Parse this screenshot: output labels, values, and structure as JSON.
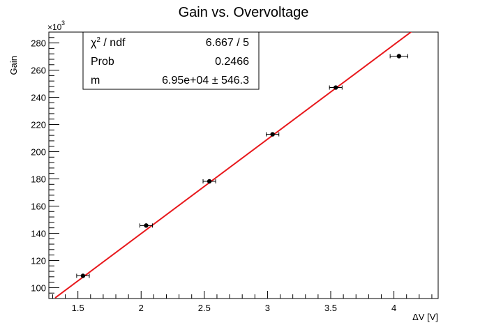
{
  "chart_data": {
    "type": "scatter",
    "title": "Gain vs. Overvoltage",
    "xlabel": "ΔV [V]",
    "ylabel": "Gain",
    "y_multiplier_label": "×10",
    "y_multiplier_exp": "3",
    "xlim": [
      1.27,
      4.35
    ],
    "ylim": [
      92,
      288
    ],
    "x_ticks": [
      1.5,
      2,
      2.5,
      3,
      3.5,
      4
    ],
    "x_tick_labels": [
      "1.5",
      "2",
      "2.5",
      "3",
      "3.5",
      "4"
    ],
    "y_ticks": [
      100,
      120,
      140,
      160,
      180,
      200,
      220,
      240,
      260,
      280
    ],
    "y_tick_labels": [
      "100",
      "120",
      "140",
      "160",
      "180",
      "200",
      "220",
      "240",
      "260",
      "280"
    ],
    "grid": false,
    "series": [
      {
        "x": [
          1.54,
          2.04,
          2.54,
          3.04,
          3.54,
          4.04
        ],
        "y": [
          108.7,
          145.7,
          178.2,
          212.8,
          247.2,
          270.3
        ],
        "x_err": [
          0.05,
          0.05,
          0.05,
          0.05,
          0.05,
          0.07
        ],
        "y_err": [
          0.5,
          0.5,
          0.5,
          0.5,
          0.5,
          0.5
        ],
        "color": "#000000"
      }
    ],
    "fit": {
      "type": "line",
      "color": "#e8181c",
      "x_start": 1.32,
      "x_end": 4.35,
      "y_start": 92.5,
      "y_end": 303
    },
    "stats_box": {
      "rows": [
        {
          "label_main": "χ",
          "label_sup": "2",
          "label_rest": " / ndf",
          "value": "6.667 / 5"
        },
        {
          "label_main": "Prob",
          "label_sup": "",
          "label_rest": "",
          "value": "0.2466"
        },
        {
          "label_main": "m",
          "label_sup": "",
          "label_rest": "",
          "value": "6.95e+04 ± 546.3"
        }
      ]
    }
  }
}
